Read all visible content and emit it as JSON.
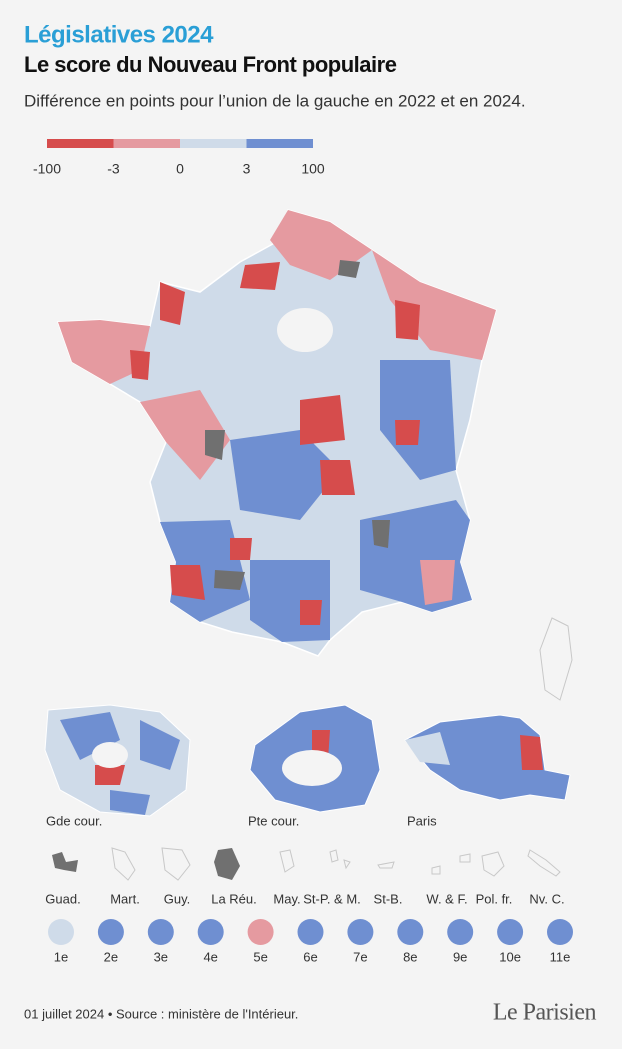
{
  "header": {
    "kicker": "Législatives 2024",
    "title": "Le score du Nouveau Front populaire",
    "subtitle": "Différence en points pour l’union de la gauche en 2022 et en 2024."
  },
  "legend": {
    "colors": [
      "#d64c4c",
      "#e59aa0",
      "#cfdbe9",
      "#6f8fd1"
    ],
    "ticks": [
      -100,
      -3,
      0,
      3,
      100
    ]
  },
  "insets": [
    "Gde cour.",
    "Pte cour.",
    "Paris"
  ],
  "overseas": [
    "Guad.",
    "Mart.",
    "Guy.",
    "La Réu.",
    "May.",
    "St-P. & M.",
    "St-B.",
    "W. & F.",
    "Pol. fr.",
    "Nv. C."
  ],
  "abroad": [
    {
      "label": "1e",
      "color": "#cfdbe9"
    },
    {
      "label": "2e",
      "color": "#6f8fd1"
    },
    {
      "label": "3e",
      "color": "#6f8fd1"
    },
    {
      "label": "4e",
      "color": "#6f8fd1"
    },
    {
      "label": "5e",
      "color": "#e59aa0"
    },
    {
      "label": "6e",
      "color": "#6f8fd1"
    },
    {
      "label": "7e",
      "color": "#6f8fd1"
    },
    {
      "label": "8e",
      "color": "#6f8fd1"
    },
    {
      "label": "9e",
      "color": "#6f8fd1"
    },
    {
      "label": "10e",
      "color": "#6f8fd1"
    },
    {
      "label": "11e",
      "color": "#6f8fd1"
    }
  ],
  "footer": {
    "source": "01 juillet 2024 • Source : ministère de l'Intérieur.",
    "logo": "Le Parisien"
  }
}
